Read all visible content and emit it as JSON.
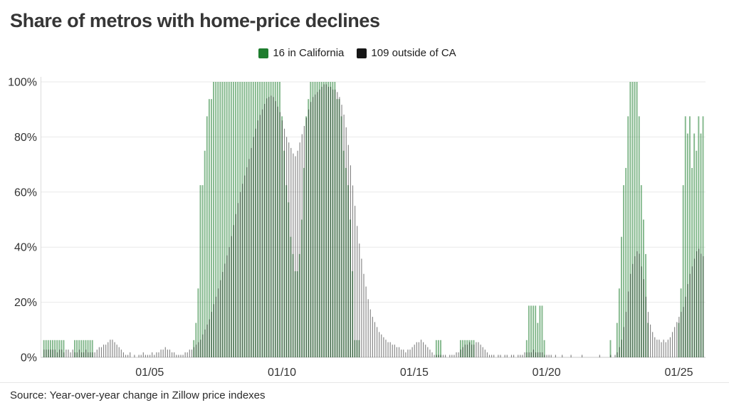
{
  "title": "Share of metros with home-price declines",
  "legend": [
    {
      "label": "16 in California",
      "color": "#1e7d2e"
    },
    {
      "label": "109 outside of CA",
      "color": "#161616"
    }
  ],
  "source": "Source: Year-over-year change in Zillow price indexes",
  "chart_data": {
    "type": "bar",
    "x_start": "2001-01",
    "x_end": "2025-12",
    "x_unit": "month",
    "ylim": [
      0,
      100
    ],
    "grid": true,
    "legend_position": "top-center",
    "y_ticks": [
      0,
      20,
      40,
      60,
      80,
      100
    ],
    "y_tick_labels": [
      "0%",
      "20%",
      "40%",
      "60%",
      "80%",
      "100%"
    ],
    "x_tick_labels": [
      "01/05",
      "01/10",
      "01/15",
      "01/20",
      "01/25"
    ],
    "x_tick_month_index": [
      48,
      108,
      168,
      228,
      288
    ],
    "series": [
      {
        "name": "16 in California",
        "color": "#1e7d2e",
        "values": [
          6.25,
          6.25,
          6.25,
          6.25,
          6.25,
          6.25,
          6.25,
          6.25,
          6.25,
          6.25,
          0,
          0,
          0,
          0,
          6.25,
          6.25,
          6.25,
          6.25,
          6.25,
          6.25,
          6.25,
          6.25,
          6.25,
          0,
          0,
          0,
          0,
          0,
          0,
          0,
          0,
          0,
          0,
          0,
          0,
          0,
          0,
          0,
          0,
          0,
          0,
          0,
          0,
          0,
          0,
          0,
          0,
          0,
          0,
          0,
          0,
          0,
          0,
          0,
          0,
          0,
          0,
          0,
          0,
          0,
          0,
          0,
          0,
          0,
          0,
          0,
          0,
          0,
          6.25,
          12.5,
          25,
          62.5,
          62.5,
          75,
          87.5,
          93.75,
          93.75,
          100,
          100,
          100,
          100,
          100,
          100,
          100,
          100,
          100,
          100,
          100,
          100,
          100,
          100,
          100,
          100,
          100,
          100,
          100,
          100,
          100,
          100,
          100,
          100,
          100,
          100,
          100,
          100,
          100,
          100,
          100,
          87.5,
          75,
          62.5,
          56.25,
          43.75,
          37.5,
          31.25,
          31.25,
          37.5,
          50,
          68.75,
          87.5,
          93.75,
          100,
          100,
          100,
          100,
          100,
          100,
          100,
          100,
          100,
          100,
          100,
          100,
          93.75,
          93.75,
          87.5,
          75,
          68.75,
          62.5,
          50,
          31.25,
          6.25,
          6.25,
          6.25,
          0,
          0,
          0,
          0,
          0,
          0,
          0,
          0,
          0,
          0,
          0,
          0,
          0,
          0,
          0,
          0,
          0,
          0,
          0,
          0,
          0,
          0,
          0,
          0,
          0,
          0,
          0,
          0,
          0,
          0,
          0,
          0,
          0,
          0,
          6.25,
          6.25,
          6.25,
          0,
          0,
          0,
          0,
          0,
          0,
          0,
          0,
          6.25,
          6.25,
          6.25,
          6.25,
          6.25,
          6.25,
          6.25,
          0,
          0,
          0,
          0,
          0,
          0,
          0,
          0,
          0,
          0,
          0,
          0,
          0,
          0,
          0,
          0,
          0,
          0,
          0,
          0,
          0,
          0,
          0,
          6.25,
          18.75,
          18.75,
          18.75,
          18.75,
          12.5,
          18.75,
          18.75,
          6.25,
          0,
          0,
          0,
          0,
          0,
          0,
          0,
          0,
          0,
          0,
          0,
          0,
          0,
          0,
          0,
          0,
          0,
          0,
          0,
          0,
          0,
          0,
          0,
          0,
          0,
          0,
          0,
          0,
          0,
          6.25,
          0,
          0,
          12.5,
          25,
          43.75,
          62.5,
          68.75,
          87.5,
          100,
          100,
          100,
          100,
          87.5,
          62.5,
          50,
          37.5,
          12.5,
          0,
          0,
          0,
          0,
          0,
          0,
          0,
          0,
          0,
          0,
          0,
          0,
          0,
          12.5,
          25,
          62.5,
          87.5,
          81.25,
          87.5,
          68.75,
          81.25,
          75,
          87.5,
          81.25,
          87.5
        ]
      },
      {
        "name": "109 outside of CA",
        "color": "#161616",
        "values": [
          2.8,
          2.8,
          2.8,
          2.8,
          2.8,
          2.8,
          1.8,
          2.8,
          2.8,
          1.8,
          2.8,
          2.8,
          1.8,
          2.8,
          1.8,
          1.8,
          2.8,
          1.8,
          1.8,
          2.8,
          1.8,
          1.8,
          1.8,
          1.8,
          2.8,
          3.7,
          3.7,
          4.6,
          4.6,
          5.5,
          6.4,
          6.4,
          5.5,
          4.6,
          3.7,
          2.8,
          1.8,
          0.9,
          0.9,
          1.8,
          0,
          0.9,
          0,
          0.9,
          0.9,
          1.8,
          0.9,
          0.9,
          0.9,
          1.8,
          0.9,
          1.8,
          1.8,
          2.8,
          2.8,
          3.7,
          2.8,
          2.8,
          1.8,
          1.8,
          0.9,
          0.9,
          0.9,
          0.9,
          1.8,
          1.8,
          2.8,
          2.8,
          3.7,
          4.6,
          5.5,
          6.4,
          8.3,
          10.1,
          11.9,
          13.8,
          16.5,
          19.3,
          22,
          25,
          28,
          31,
          34,
          37,
          40,
          44,
          48,
          52,
          56,
          60,
          63,
          66,
          69,
          72,
          76,
          80,
          83,
          86,
          88,
          90,
          92,
          94,
          94.5,
          95,
          94.5,
          93,
          91,
          89,
          86,
          83,
          80,
          78,
          76,
          74,
          73,
          75,
          78,
          81,
          84,
          87,
          90,
          92.7,
          94.5,
          95.4,
          96.3,
          97.2,
          98.2,
          99.1,
          99.1,
          98.2,
          98.2,
          97.2,
          97.2,
          96.3,
          94.5,
          91.7,
          88.1,
          83.5,
          77.1,
          69.7,
          62.4,
          55,
          47.7,
          41.3,
          35.8,
          30.3,
          25.7,
          21.1,
          17.4,
          14.7,
          12.8,
          11,
          9.2,
          8.3,
          7.3,
          6.4,
          5.5,
          5.5,
          4.6,
          4.6,
          3.7,
          3.7,
          2.8,
          2.8,
          1.8,
          2.8,
          2.8,
          3.7,
          4.6,
          5.5,
          5.5,
          6.4,
          5.5,
          4.6,
          3.7,
          2.8,
          1.8,
          0.9,
          0.9,
          0.9,
          0.9,
          0.9,
          0.9,
          0,
          0.9,
          0.9,
          0.9,
          1.8,
          1.8,
          2.8,
          3.7,
          4.6,
          4.6,
          5.5,
          4.6,
          4.6,
          5.5,
          5.5,
          4.6,
          3.7,
          2.8,
          1.8,
          0.9,
          0.9,
          0.9,
          0,
          0.9,
          0.9,
          0,
          0.9,
          0.9,
          0,
          0.9,
          0.9,
          0,
          0.9,
          0.9,
          0.9,
          1.8,
          1.8,
          1.8,
          1.8,
          2.8,
          1.8,
          1.8,
          1.8,
          1.8,
          0.9,
          0.9,
          0.9,
          0.9,
          0,
          0.9,
          0,
          0,
          0.9,
          0,
          0,
          0,
          0.9,
          0,
          0,
          0,
          0,
          0.9,
          0,
          0,
          0,
          0,
          0,
          0,
          0,
          0.9,
          0,
          0,
          0,
          0,
          0.9,
          0,
          0.9,
          1.8,
          3.7,
          6.4,
          11,
          16.5,
          23.9,
          30.3,
          33.9,
          36.7,
          38.5,
          37.6,
          33,
          28.4,
          22,
          16.5,
          11.9,
          9.2,
          7.3,
          6.4,
          6.4,
          5.5,
          6.4,
          5.5,
          6.4,
          7.3,
          9.2,
          11,
          12.8,
          14.7,
          16.5,
          18.3,
          22,
          26.6,
          30.3,
          33,
          35.8,
          38.5,
          39.4,
          37.6,
          36.7
        ]
      }
    ]
  }
}
